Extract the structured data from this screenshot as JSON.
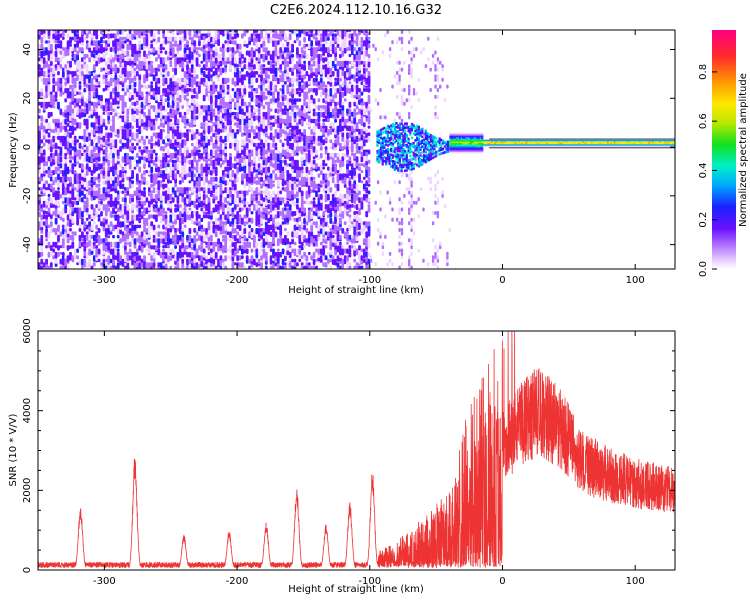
{
  "title": "C2E6.2024.112.10.16.G32",
  "colors": {
    "series": "#ee3333",
    "colormap": [
      "#ffffff",
      "#ecd6ff",
      "#b070ff",
      "#6a11ff",
      "#1a22ff",
      "#00a8ff",
      "#00f0c8",
      "#10e020",
      "#b8e800",
      "#ffe800",
      "#ff9a00",
      "#ff2a2a",
      "#ff0080"
    ]
  },
  "chart_data": [
    {
      "type": "heatmap",
      "xlabel": "Height of straight line (km)",
      "ylabel": "Frequency (Hz)",
      "xlim": [
        -350,
        130
      ],
      "ylim": [
        -50,
        48
      ],
      "xticks": [
        -300,
        -200,
        -100,
        0,
        100
      ],
      "yticks": [
        -40,
        -20,
        0,
        20,
        40
      ],
      "colorbar": {
        "label": "Normalized spectral amplitude",
        "range": [
          0,
          0.97
        ],
        "ticks": [
          "0.0",
          "0.2",
          "0.4",
          "0.6",
          "0.8"
        ],
        "tick_values": [
          0,
          0.2,
          0.4,
          0.6,
          0.8
        ]
      },
      "regions": [
        {
          "x": [
            -350,
            -100
          ],
          "freq_band": [
            -50,
            48
          ],
          "amplitude": [
            0.08,
            0.3
          ],
          "description": "broadband noise"
        },
        {
          "x": [
            -95,
            -40
          ],
          "freq_band": [
            -10,
            10
          ],
          "amplitude": [
            0.2,
            0.5
          ]
        },
        {
          "x": [
            -40,
            130
          ],
          "freq_band": [
            0,
            3
          ],
          "amplitude": [
            0.5,
            0.95
          ]
        }
      ],
      "spectral_peak_hz": 1.5
    },
    {
      "type": "line",
      "xlabel": "Height of straight line (km)",
      "ylabel": "SNR (10 * V/V)",
      "xlim": [
        -350,
        130
      ],
      "ylim": [
        0,
        6000
      ],
      "xticks": [
        -300,
        -200,
        -100,
        0,
        100
      ],
      "yticks": [
        0,
        2000,
        4000,
        6000
      ],
      "noise_floor": 150,
      "peaks": [
        {
          "x": -318,
          "y": 1600
        },
        {
          "x": -277,
          "y": 2900
        },
        {
          "x": -240,
          "y": 900
        },
        {
          "x": -206,
          "y": 1000
        },
        {
          "x": -178,
          "y": 1200
        },
        {
          "x": -155,
          "y": 2100
        },
        {
          "x": -133,
          "y": 1150
        },
        {
          "x": -115,
          "y": 1700
        },
        {
          "x": -98,
          "y": 2500
        }
      ],
      "envelope": [
        {
          "x": -100,
          "y": 300
        },
        {
          "x": -80,
          "y": 600
        },
        {
          "x": -60,
          "y": 1100
        },
        {
          "x": -40,
          "y": 1700
        },
        {
          "x": -20,
          "y": 2800
        },
        {
          "x": 0,
          "y": 4000
        },
        {
          "x": 20,
          "y": 5000
        },
        {
          "x": 30,
          "y": 5100
        },
        {
          "x": 45,
          "y": 4500
        },
        {
          "x": 60,
          "y": 3500
        },
        {
          "x": 80,
          "y": 3100
        },
        {
          "x": 100,
          "y": 2800
        },
        {
          "x": 130,
          "y": 2600
        }
      ]
    }
  ]
}
